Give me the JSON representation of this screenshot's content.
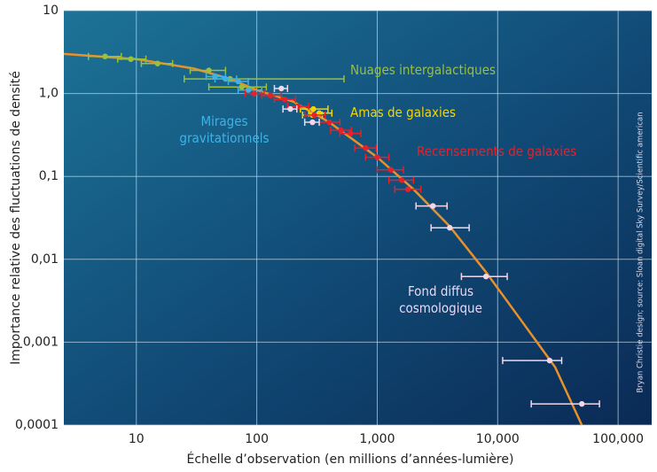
{
  "chart_data": {
    "type": "scatter",
    "y_label": "Importance relative des fluctuations de densité",
    "x_label": "Échelle d’observation (en millions d’années-lumière)",
    "credit": "Bryan Christie design; source: Sloan digital Sky Survey/Scientific american",
    "log_x": true,
    "log_y": true,
    "grid": true,
    "xlim": [
      2.5,
      190000
    ],
    "ylim": [
      0.0001,
      10
    ],
    "xticks": [
      10,
      100,
      {
        "value": 1000,
        "label": "1,000"
      },
      {
        "value": 10000,
        "label": "10,000"
      },
      {
        "value": 100000,
        "label": "100,000"
      }
    ],
    "yticks": [
      {
        "value": 0.0001,
        "label": "0,0001"
      },
      {
        "value": 0.001,
        "label": "0,001"
      },
      {
        "value": 0.01,
        "label": "0,01"
      },
      {
        "value": 0.1,
        "label": "0,1"
      },
      {
        "value": 1,
        "label": "1,0"
      },
      10
    ],
    "fit": {
      "color": "#e8902a",
      "x": [
        2.5,
        10,
        30,
        60,
        100,
        200,
        400,
        1000,
        2000,
        4000,
        8000,
        15000,
        30000,
        50000
      ],
      "values": [
        3.0,
        2.6,
        2.0,
        1.5,
        1.1,
        0.8,
        0.45,
        0.17,
        0.07,
        0.025,
        0.007,
        0.002,
        0.0005,
        0.0001
      ]
    },
    "series": [
      {
        "name": "Nuages intergalactiques",
        "color": "#9cbf3c",
        "x": [
          5.5,
          9,
          15,
          40,
          60,
          75
        ],
        "values": [
          2.8,
          2.6,
          2.3,
          1.9,
          1.5,
          1.2
        ],
        "x_low": [
          4,
          7,
          11,
          28,
          25,
          40
        ],
        "x_high": [
          7.5,
          12,
          20,
          55,
          530,
          120
        ]
      },
      {
        "name": "Mirages gravitationnels",
        "color": "#3fb2e6",
        "x": [
          45,
          55,
          70,
          85
        ],
        "values": [
          1.6,
          1.5,
          1.4,
          1.1
        ],
        "x_low": [
          38,
          45,
          58,
          70
        ],
        "x_high": [
          55,
          68,
          85,
          110
        ]
      },
      {
        "name": "Amas de galaxies",
        "color": "#f5d400",
        "x": [
          295,
          330,
          290
        ],
        "values": [
          0.65,
          0.58,
          0.55
        ],
        "x_low": [
          230,
          270,
          240
        ],
        "x_high": [
          390,
          420,
          350
        ]
      },
      {
        "name": "Recensements de galaxies",
        "color": "#e8202a",
        "x": [
          95,
          130,
          170,
          220,
          300,
          400,
          500,
          600,
          800,
          1000,
          1300,
          1600,
          1800
        ],
        "values": [
          1.0,
          0.95,
          0.85,
          0.7,
          0.55,
          0.45,
          0.36,
          0.33,
          0.22,
          0.17,
          0.12,
          0.09,
          0.07
        ],
        "x_low": [
          80,
          110,
          140,
          180,
          250,
          330,
          410,
          490,
          650,
          800,
          1000,
          1250,
          1400
        ],
        "x_high": [
          115,
          160,
          210,
          270,
          370,
          490,
          610,
          730,
          980,
          1250,
          1650,
          2000,
          2300
        ]
      },
      {
        "name": "Fond diffus cosmologique",
        "color": "#f2d6ea",
        "x": [
          160,
          190,
          290,
          2900,
          4000,
          8000,
          27000,
          50000
        ],
        "values": [
          1.15,
          0.65,
          0.45,
          0.044,
          0.024,
          0.0062,
          0.0006,
          0.00018
        ],
        "x_low": [
          140,
          165,
          250,
          2100,
          2800,
          5000,
          11000,
          19000
        ],
        "x_high": [
          180,
          215,
          330,
          3800,
          5800,
          12000,
          34000,
          70000
        ]
      }
    ]
  }
}
